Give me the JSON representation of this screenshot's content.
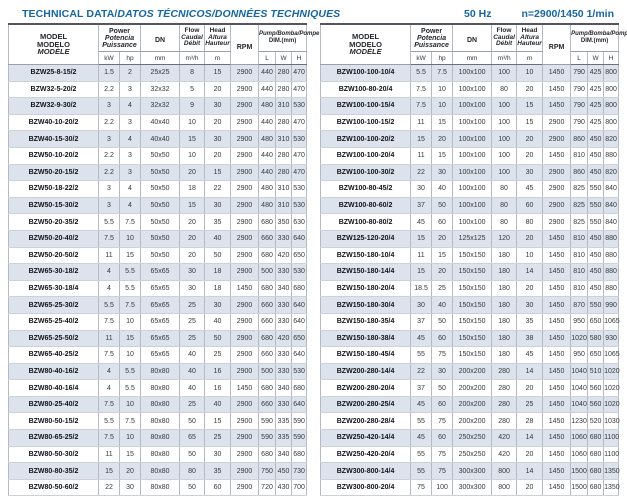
{
  "page": {
    "title_en": "TECHNICAL DATA/",
    "title_intl": "DATOS TÉCNICOS/DONNÉES TECHNIQUES",
    "frequency": "50 Hz",
    "speed": "n=2900/1450 1/min",
    "accent_color": "#1566a2",
    "stripe_color": "#dce3ec"
  },
  "header": {
    "model": [
      "MODEL",
      "MODELO",
      "MODÈLE"
    ],
    "power": [
      "Power",
      "Potencia",
      "Puissance"
    ],
    "power_units": [
      "kW",
      "hp"
    ],
    "dn": "DN",
    "dn_unit": "mm",
    "flow": [
      "Flow",
      "Caudal",
      "Débit"
    ],
    "flow_unit": "m³/h",
    "head": [
      "Head",
      "Altura",
      "Hauteur"
    ],
    "head_unit": "m",
    "rpm": "RPM",
    "dim_title": "Pump/Bomba/Pompe",
    "dim_sub": "DIM.(mm)",
    "dim_units": [
      "L",
      "W",
      "H"
    ]
  },
  "tables": [
    {
      "rows": [
        [
          "BZW25-8-15/2",
          "1.5",
          "2",
          "25x25",
          "8",
          "15",
          "2900",
          "440",
          "280",
          "470"
        ],
        [
          "BZW32-5-20/2",
          "2.2",
          "3",
          "32x32",
          "5",
          "20",
          "2900",
          "440",
          "280",
          "470"
        ],
        [
          "BZW32-9-30/2",
          "3",
          "4",
          "32x32",
          "9",
          "30",
          "2900",
          "480",
          "310",
          "530"
        ],
        [
          "BZW40-10-20/2",
          "2.2",
          "3",
          "40x40",
          "10",
          "20",
          "2900",
          "440",
          "280",
          "470"
        ],
        [
          "BZW40-15-30/2",
          "3",
          "4",
          "40x40",
          "15",
          "30",
          "2900",
          "480",
          "310",
          "530"
        ],
        [
          "BZW50-10-20/2",
          "2.2",
          "3",
          "50x50",
          "10",
          "20",
          "2900",
          "440",
          "280",
          "470"
        ],
        [
          "BZW50-20-15/2",
          "2.2",
          "3",
          "50x50",
          "20",
          "15",
          "2900",
          "440",
          "280",
          "470"
        ],
        [
          "BZW50-18-22/2",
          "3",
          "4",
          "50x50",
          "18",
          "22",
          "2900",
          "480",
          "310",
          "530"
        ],
        [
          "BZW50-15-30/2",
          "3",
          "4",
          "50x50",
          "15",
          "30",
          "2900",
          "480",
          "310",
          "530"
        ],
        [
          "BZW50-20-35/2",
          "5.5",
          "7.5",
          "50x50",
          "20",
          "35",
          "2900",
          "680",
          "350",
          "630"
        ],
        [
          "BZW50-20-40/2",
          "7.5",
          "10",
          "50x50",
          "20",
          "40",
          "2900",
          "660",
          "330",
          "640"
        ],
        [
          "BZW50-20-50/2",
          "11",
          "15",
          "50x50",
          "20",
          "50",
          "2900",
          "680",
          "420",
          "650"
        ],
        [
          "BZW65-30-18/2",
          "4",
          "5.5",
          "65x65",
          "30",
          "18",
          "2900",
          "500",
          "330",
          "530"
        ],
        [
          "BZW65-30-18/4",
          "4",
          "5.5",
          "65x65",
          "30",
          "18",
          "1450",
          "680",
          "340",
          "680"
        ],
        [
          "BZW65-25-30/2",
          "5.5",
          "7.5",
          "65x65",
          "25",
          "30",
          "2900",
          "660",
          "330",
          "640"
        ],
        [
          "BZW65-25-40/2",
          "7.5",
          "10",
          "65x65",
          "25",
          "40",
          "2900",
          "660",
          "330",
          "640"
        ],
        [
          "BZW65-25-50/2",
          "11",
          "15",
          "65x65",
          "25",
          "50",
          "2900",
          "680",
          "420",
          "650"
        ],
        [
          "BZW65-40-25/2",
          "7.5",
          "10",
          "65x65",
          "40",
          "25",
          "2900",
          "660",
          "330",
          "640"
        ],
        [
          "BZW80-40-16/2",
          "4",
          "5.5",
          "80x80",
          "40",
          "16",
          "2900",
          "500",
          "330",
          "530"
        ],
        [
          "BZW80-40-16/4",
          "4",
          "5.5",
          "80x80",
          "40",
          "16",
          "1450",
          "680",
          "340",
          "680"
        ],
        [
          "BZW80-25-40/2",
          "7.5",
          "10",
          "80x80",
          "25",
          "40",
          "2900",
          "660",
          "330",
          "640"
        ],
        [
          "BZW80-50-15/2",
          "5.5",
          "7.5",
          "80x80",
          "50",
          "15",
          "2900",
          "590",
          "335",
          "590"
        ],
        [
          "BZW80-65-25/2",
          "7.5",
          "10",
          "80x80",
          "65",
          "25",
          "2900",
          "590",
          "335",
          "590"
        ],
        [
          "BZW80-50-30/2",
          "11",
          "15",
          "80x80",
          "50",
          "30",
          "2900",
          "680",
          "340",
          "680"
        ],
        [
          "BZW80-80-35/2",
          "15",
          "20",
          "80x80",
          "80",
          "35",
          "2900",
          "750",
          "450",
          "730"
        ],
        [
          "BZW80-50-60/2",
          "22",
          "30",
          "80x80",
          "50",
          "60",
          "2900",
          "720",
          "430",
          "700"
        ]
      ]
    },
    {
      "rows": [
        [
          "BZW100-100-10/4",
          "5.5",
          "7.5",
          "100x100",
          "100",
          "10",
          "1450",
          "790",
          "425",
          "800"
        ],
        [
          "BZW100-80-20/4",
          "7.5",
          "10",
          "100x100",
          "80",
          "20",
          "1450",
          "790",
          "425",
          "800"
        ],
        [
          "BZW100-100-15/4",
          "7.5",
          "10",
          "100x100",
          "100",
          "15",
          "1450",
          "790",
          "425",
          "800"
        ],
        [
          "BZW100-100-15/2",
          "11",
          "15",
          "100x100",
          "100",
          "15",
          "2900",
          "790",
          "425",
          "800"
        ],
        [
          "BZW100-100-20/2",
          "15",
          "20",
          "100x100",
          "100",
          "20",
          "2900",
          "860",
          "450",
          "820"
        ],
        [
          "BZW100-100-20/4",
          "11",
          "15",
          "100x100",
          "100",
          "20",
          "1450",
          "810",
          "450",
          "880"
        ],
        [
          "BZW100-100-30/2",
          "22",
          "30",
          "100x100",
          "100",
          "30",
          "2900",
          "860",
          "450",
          "820"
        ],
        [
          "BZW100-80-45/2",
          "30",
          "40",
          "100x100",
          "80",
          "45",
          "2900",
          "825",
          "550",
          "840"
        ],
        [
          "BZW100-80-60/2",
          "37",
          "50",
          "100x100",
          "80",
          "60",
          "2900",
          "825",
          "550",
          "840"
        ],
        [
          "BZW100-80-80/2",
          "45",
          "60",
          "100x100",
          "80",
          "80",
          "2900",
          "825",
          "550",
          "840"
        ],
        [
          "BZW125-120-20/4",
          "15",
          "20",
          "125x125",
          "120",
          "20",
          "1450",
          "810",
          "450",
          "880"
        ],
        [
          "BZW150-180-10/4",
          "11",
          "15",
          "150x150",
          "180",
          "10",
          "1450",
          "810",
          "450",
          "880"
        ],
        [
          "BZW150-180-14/4",
          "15",
          "20",
          "150x150",
          "180",
          "14",
          "1450",
          "810",
          "450",
          "880"
        ],
        [
          "BZW150-180-20/4",
          "18.5",
          "25",
          "150x150",
          "180",
          "20",
          "1450",
          "810",
          "450",
          "880"
        ],
        [
          "BZW150-180-30/4",
          "30",
          "40",
          "150x150",
          "180",
          "30",
          "1450",
          "870",
          "550",
          "990"
        ],
        [
          "BZW150-180-35/4",
          "37",
          "50",
          "150x150",
          "180",
          "35",
          "1450",
          "950",
          "650",
          "1065"
        ],
        [
          "BZW150-180-38/4",
          "45",
          "60",
          "150x150",
          "180",
          "38",
          "1450",
          "1020",
          "580",
          "930"
        ],
        [
          "BZW150-180-45/4",
          "55",
          "75",
          "150x150",
          "180",
          "45",
          "1450",
          "950",
          "650",
          "1065"
        ],
        [
          "BZW200-280-14/4",
          "22",
          "30",
          "200x200",
          "280",
          "14",
          "1450",
          "1040",
          "510",
          "1020"
        ],
        [
          "BZW200-280-20/4",
          "37",
          "50",
          "200x200",
          "280",
          "20",
          "1450",
          "1040",
          "560",
          "1020"
        ],
        [
          "BZW200-280-25/4",
          "45",
          "60",
          "200x200",
          "280",
          "25",
          "1450",
          "1040",
          "560",
          "1020"
        ],
        [
          "BZW200-280-28/4",
          "55",
          "75",
          "200x200",
          "280",
          "28",
          "1450",
          "1230",
          "520",
          "1030"
        ],
        [
          "BZW250-420-14/4",
          "45",
          "60",
          "250x250",
          "420",
          "14",
          "1450",
          "1060",
          "680",
          "1100"
        ],
        [
          "BZW250-420-20/4",
          "55",
          "75",
          "250x250",
          "420",
          "20",
          "1450",
          "1060",
          "680",
          "1100"
        ],
        [
          "BZW300-800-14/4",
          "55",
          "75",
          "300x300",
          "800",
          "14",
          "1450",
          "1500",
          "680",
          "1350"
        ],
        [
          "BZW300-800-20/4",
          "75",
          "100",
          "300x300",
          "800",
          "20",
          "1450",
          "1500",
          "680",
          "1350"
        ]
      ]
    }
  ]
}
